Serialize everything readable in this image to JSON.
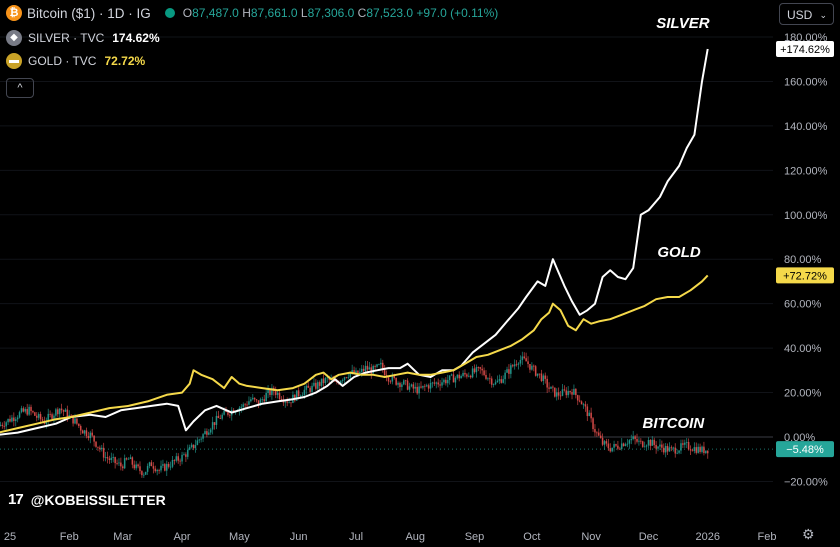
{
  "header": {
    "coin_glyph": "₿",
    "title": "Bitcoin ($1) · 1D · IG",
    "ohlc": {
      "o_label": "O",
      "o": "87,487.0",
      "h_label": "H",
      "h": "87,661.0",
      "l_label": "L",
      "l": "87,306.0",
      "c_label": "C",
      "c": "87,523.0",
      "change": "+97.0 (+0.11%)"
    }
  },
  "legend": [
    {
      "label": "SILVER · TVC",
      "value": "174.62%",
      "color": "#ffffff",
      "icon_bg": "#787b86"
    },
    {
      "label": "GOLD · TVC",
      "value": "72.72%",
      "color": "#f5d94a",
      "icon_bg": "#c9a227"
    }
  ],
  "collapse_glyph": "^",
  "currency": {
    "value": "USD",
    "chevron": "⌄"
  },
  "watermark": {
    "logo": "17",
    "handle": "@KOBEISSILETTER"
  },
  "settings_glyph": "⚙",
  "colors": {
    "silver": "#ffffff",
    "gold": "#f5d94a",
    "up": "#26a69a",
    "down": "#ef5350",
    "bg": "#000000"
  },
  "chart_data": {
    "type": "line",
    "y_unit": "% change",
    "ylim": [
      -26,
      184
    ],
    "y_ticks": [
      180,
      160,
      140,
      120,
      100,
      80,
      60,
      40,
      20,
      0,
      -20
    ],
    "y_tick_labels": [
      "180.00%",
      "160.00%",
      "140.00%",
      "120.00%",
      "100.00%",
      "80.00%",
      "60.00%",
      "40.00%",
      "20.00%",
      "0.00%",
      "−20.00%"
    ],
    "x_tick_labels": [
      {
        "label": "25",
        "day": 0
      },
      {
        "label": "Feb",
        "day": 31
      },
      {
        "label": "Mar",
        "day": 59
      },
      {
        "label": "Apr",
        "day": 90
      },
      {
        "label": "May",
        "day": 120
      },
      {
        "label": "Jun",
        "day": 151
      },
      {
        "label": "Jul",
        "day": 181
      },
      {
        "label": "Aug",
        "day": 212
      },
      {
        "label": "Sep",
        "day": 243
      },
      {
        "label": "Oct",
        "day": 273
      },
      {
        "label": "Nov",
        "day": 304
      },
      {
        "label": "Dec",
        "day": 334
      },
      {
        "label": "2026",
        "day": 365
      },
      {
        "label": "Feb",
        "day": 396
      }
    ],
    "xlim": [
      -6,
      412
    ],
    "annotations": [
      {
        "text": "SILVER",
        "day": 352,
        "y": 184
      },
      {
        "text": "GOLD",
        "day": 350,
        "y": 81
      },
      {
        "text": "BITCOIN",
        "day": 347,
        "y": 4
      }
    ],
    "price_badges": [
      {
        "text": "+174.62%",
        "y": 174.62,
        "bg": "#ffffff",
        "fg": "#000000"
      },
      {
        "text": "+72.72%",
        "y": 72.72,
        "bg": "#f5d94a",
        "fg": "#000000"
      },
      {
        "text": "−5.48%",
        "y": -5.48,
        "bg": "#26a69a",
        "fg": "#ffffff"
      }
    ],
    "series": [
      {
        "key": "silver",
        "color": "#ffffff",
        "points": [
          [
            -6,
            1
          ],
          [
            4,
            2
          ],
          [
            14,
            4
          ],
          [
            24,
            6
          ],
          [
            32,
            9
          ],
          [
            42,
            10
          ],
          [
            50,
            9
          ],
          [
            58,
            12
          ],
          [
            66,
            13
          ],
          [
            74,
            14
          ],
          [
            82,
            15
          ],
          [
            88,
            14
          ],
          [
            92,
            3
          ],
          [
            96,
            7
          ],
          [
            102,
            12
          ],
          [
            108,
            14
          ],
          [
            116,
            11
          ],
          [
            124,
            13
          ],
          [
            132,
            15
          ],
          [
            140,
            16
          ],
          [
            148,
            17
          ],
          [
            154,
            18
          ],
          [
            160,
            20
          ],
          [
            166,
            23
          ],
          [
            170,
            26
          ],
          [
            174,
            23
          ],
          [
            180,
            27
          ],
          [
            186,
            29
          ],
          [
            192,
            30
          ],
          [
            198,
            31
          ],
          [
            204,
            31
          ],
          [
            208,
            33
          ],
          [
            214,
            28
          ],
          [
            220,
            27
          ],
          [
            226,
            30
          ],
          [
            232,
            30
          ],
          [
            236,
            32
          ],
          [
            242,
            38
          ],
          [
            248,
            42
          ],
          [
            254,
            46
          ],
          [
            260,
            52
          ],
          [
            266,
            58
          ],
          [
            270,
            63
          ],
          [
            276,
            70
          ],
          [
            280,
            68
          ],
          [
            284,
            80
          ],
          [
            286,
            76
          ],
          [
            290,
            68
          ],
          [
            294,
            61
          ],
          [
            298,
            55
          ],
          [
            302,
            57
          ],
          [
            306,
            60
          ],
          [
            310,
            72
          ],
          [
            314,
            75
          ],
          [
            318,
            72
          ],
          [
            322,
            71
          ],
          [
            326,
            76
          ],
          [
            330,
            100
          ],
          [
            334,
            102
          ],
          [
            340,
            108
          ],
          [
            344,
            115
          ],
          [
            350,
            122
          ],
          [
            354,
            130
          ],
          [
            358,
            136
          ],
          [
            362,
            160
          ],
          [
            365,
            174.62
          ]
        ]
      },
      {
        "key": "gold",
        "color": "#f5d94a",
        "points": [
          [
            -6,
            2
          ],
          [
            4,
            4
          ],
          [
            14,
            6
          ],
          [
            24,
            8
          ],
          [
            32,
            9
          ],
          [
            42,
            11
          ],
          [
            52,
            13
          ],
          [
            62,
            14
          ],
          [
            72,
            16
          ],
          [
            82,
            19
          ],
          [
            90,
            20
          ],
          [
            94,
            24
          ],
          [
            96,
            30
          ],
          [
            100,
            28
          ],
          [
            106,
            26
          ],
          [
            112,
            22
          ],
          [
            116,
            27
          ],
          [
            120,
            24
          ],
          [
            124,
            23
          ],
          [
            132,
            22
          ],
          [
            140,
            21
          ],
          [
            148,
            22
          ],
          [
            154,
            24
          ],
          [
            160,
            28
          ],
          [
            164,
            29
          ],
          [
            168,
            26
          ],
          [
            172,
            28
          ],
          [
            178,
            29
          ],
          [
            184,
            28
          ],
          [
            190,
            28
          ],
          [
            196,
            27
          ],
          [
            202,
            28
          ],
          [
            208,
            29
          ],
          [
            214,
            28
          ],
          [
            220,
            28
          ],
          [
            226,
            29
          ],
          [
            232,
            30
          ],
          [
            238,
            33
          ],
          [
            244,
            36
          ],
          [
            250,
            37
          ],
          [
            256,
            39
          ],
          [
            262,
            41
          ],
          [
            268,
            44
          ],
          [
            274,
            48
          ],
          [
            278,
            53
          ],
          [
            282,
            56
          ],
          [
            284,
            60
          ],
          [
            288,
            57
          ],
          [
            292,
            50
          ],
          [
            296,
            48
          ],
          [
            300,
            53
          ],
          [
            304,
            51
          ],
          [
            308,
            52
          ],
          [
            314,
            53
          ],
          [
            320,
            55
          ],
          [
            326,
            57
          ],
          [
            332,
            59
          ],
          [
            338,
            62
          ],
          [
            344,
            63
          ],
          [
            350,
            63
          ],
          [
            356,
            66
          ],
          [
            362,
            70
          ],
          [
            365,
            72.72
          ]
        ]
      },
      {
        "key": "bitcoin",
        "type": "candlestick",
        "points": [
          [
            -6,
            5
          ],
          [
            0,
            8
          ],
          [
            6,
            11
          ],
          [
            10,
            12
          ],
          [
            14,
            9
          ],
          [
            18,
            7
          ],
          [
            22,
            10
          ],
          [
            26,
            13
          ],
          [
            30,
            10
          ],
          [
            34,
            7
          ],
          [
            38,
            3
          ],
          [
            42,
            1
          ],
          [
            46,
            -4
          ],
          [
            50,
            -9
          ],
          [
            54,
            -11
          ],
          [
            58,
            -13
          ],
          [
            62,
            -10
          ],
          [
            66,
            -14
          ],
          [
            70,
            -16
          ],
          [
            74,
            -12
          ],
          [
            78,
            -15
          ],
          [
            82,
            -13
          ],
          [
            86,
            -11
          ],
          [
            90,
            -9
          ],
          [
            94,
            -6
          ],
          [
            98,
            -2
          ],
          [
            102,
            2
          ],
          [
            106,
            6
          ],
          [
            110,
            9
          ],
          [
            114,
            11
          ],
          [
            118,
            13
          ],
          [
            122,
            14
          ],
          [
            126,
            17
          ],
          [
            130,
            15
          ],
          [
            134,
            19
          ],
          [
            138,
            21
          ],
          [
            142,
            18
          ],
          [
            146,
            16
          ],
          [
            150,
            19
          ],
          [
            154,
            21
          ],
          [
            158,
            22
          ],
          [
            162,
            24
          ],
          [
            166,
            26
          ],
          [
            170,
            24
          ],
          [
            174,
            27
          ],
          [
            178,
            29
          ],
          [
            182,
            28
          ],
          [
            186,
            31
          ],
          [
            190,
            30
          ],
          [
            194,
            32
          ],
          [
            198,
            27
          ],
          [
            202,
            25
          ],
          [
            206,
            24
          ],
          [
            210,
            22
          ],
          [
            214,
            21
          ],
          [
            218,
            23
          ],
          [
            222,
            24
          ],
          [
            226,
            25
          ],
          [
            230,
            26
          ],
          [
            234,
            27
          ],
          [
            238,
            28
          ],
          [
            242,
            29
          ],
          [
            246,
            30
          ],
          [
            250,
            27
          ],
          [
            254,
            24
          ],
          [
            258,
            27
          ],
          [
            262,
            31
          ],
          [
            266,
            35
          ],
          [
            270,
            34
          ],
          [
            274,
            30
          ],
          [
            278,
            27
          ],
          [
            282,
            22
          ],
          [
            286,
            19
          ],
          [
            290,
            20
          ],
          [
            294,
            21
          ],
          [
            298,
            17
          ],
          [
            302,
            11
          ],
          [
            306,
            3
          ],
          [
            310,
            -3
          ],
          [
            314,
            -5
          ],
          [
            318,
            -4
          ],
          [
            322,
            -2
          ],
          [
            326,
            -1
          ],
          [
            330,
            -3
          ],
          [
            334,
            -2
          ],
          [
            338,
            -4
          ],
          [
            342,
            -5
          ],
          [
            346,
            -6
          ],
          [
            350,
            -5
          ],
          [
            354,
            -4
          ],
          [
            358,
            -5
          ],
          [
            362,
            -6
          ],
          [
            365,
            -5.48
          ]
        ]
      }
    ]
  }
}
